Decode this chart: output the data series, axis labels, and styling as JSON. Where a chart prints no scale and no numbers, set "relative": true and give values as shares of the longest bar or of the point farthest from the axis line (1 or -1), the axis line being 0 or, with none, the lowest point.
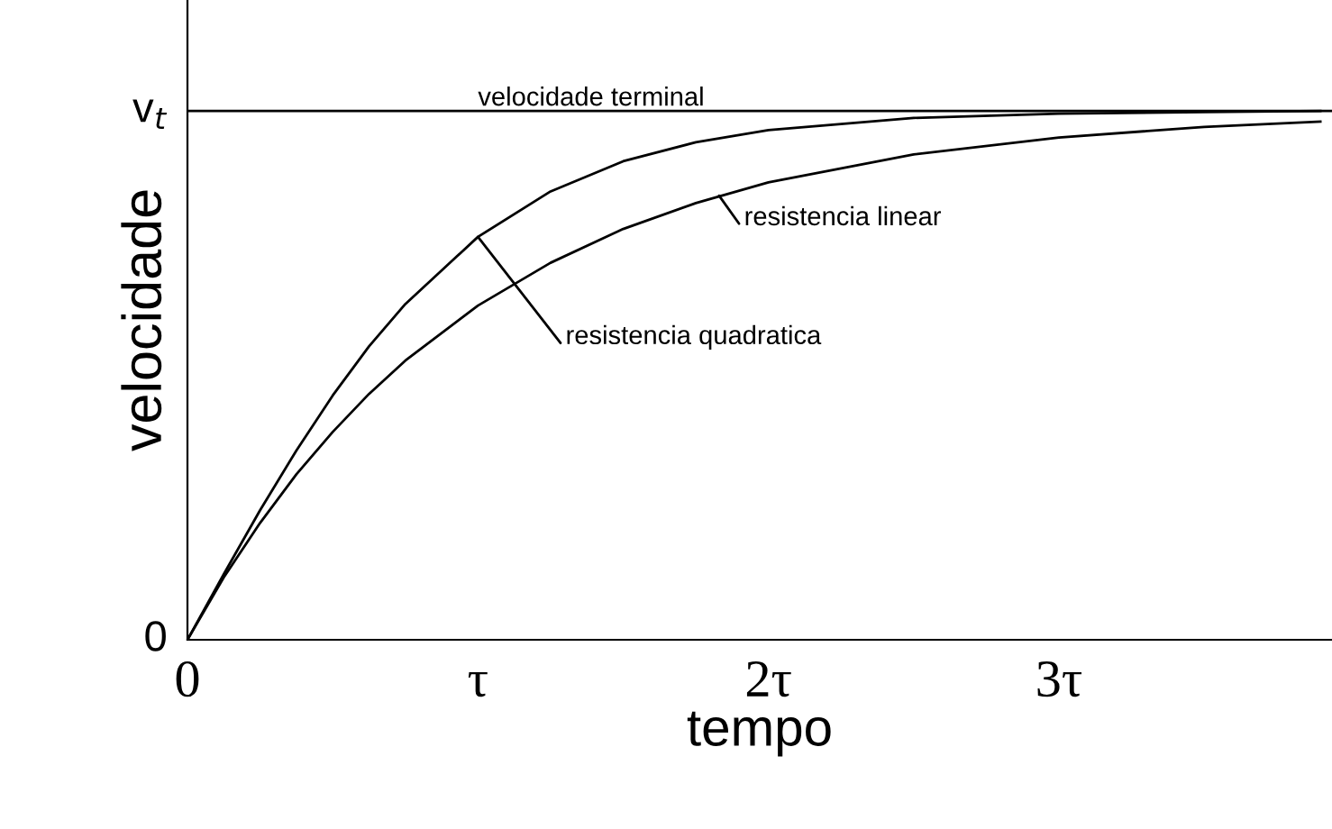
{
  "chart_data": {
    "type": "line",
    "xlabel": "tempo",
    "ylabel": "velocidade",
    "x": [
      0,
      0.125,
      0.25,
      0.375,
      0.5,
      0.625,
      0.75,
      1,
      1.25,
      1.5,
      1.75,
      2,
      2.5,
      3,
      3.5,
      3.9
    ],
    "series": [
      {
        "color": "#000000",
        "values": [
          0,
          0.124,
          0.245,
          0.358,
          0.462,
          0.555,
          0.635,
          0.762,
          0.848,
          0.905,
          0.941,
          0.964,
          0.987,
          0.995,
          0.998,
          1
        ]
      },
      {
        "color": "#000000",
        "values": [
          0,
          0.118,
          0.221,
          0.313,
          0.393,
          0.465,
          0.528,
          0.632,
          0.713,
          0.777,
          0.826,
          0.865,
          0.918,
          0.95,
          0.97,
          0.98
        ]
      }
    ],
    "xlim": [
      0,
      3.94
    ],
    "xticks": [
      0,
      {
        "value": 1,
        "label": "τ"
      },
      {
        "value": 2,
        "label": "2τ"
      },
      {
        "value": 3,
        "label": "3τ"
      }
    ],
    "relative": true,
    "ref_lines": [
      {
        "axis": "y",
        "value": 1,
        "label": "velocidade terminal",
        "color": "#000000"
      }
    ],
    "annotations": [
      {
        "text": "resistencia linear",
        "x": 1.83,
        "y": 0.84
      },
      {
        "text": "resistencia quadratica",
        "x": 1.0,
        "y": 0.762
      },
      {
        "text": "0",
        "x": 0,
        "y": 0
      },
      {
        "text": "v$_{t}$",
        "x": 0,
        "y": 1
      }
    ],
    "grid": false,
    "legend": false,
    "marker": "none",
    "line_style": "solid"
  }
}
